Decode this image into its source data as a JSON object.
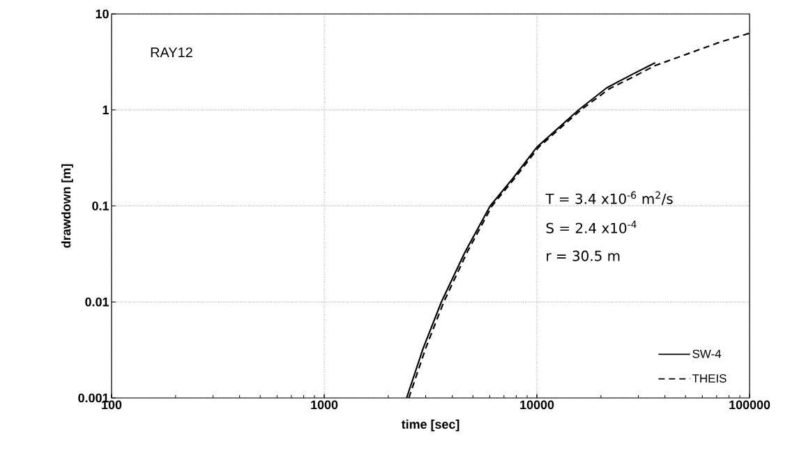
{
  "chart_data": {
    "type": "line",
    "xlabel": "time  [sec]",
    "ylabel": "drawdown  [m]",
    "log": "xy",
    "grid": true,
    "legend": "bottom right",
    "marker": "none",
    "xlim": [
      100,
      100000
    ],
    "xticks": [
      100,
      1000,
      10000,
      100000
    ],
    "ylim": [
      0.001,
      10
    ],
    "yticks": [
      0.001,
      0.01,
      0.1,
      1,
      10
    ],
    "annotations": [
      "RAY12",
      "T = 3.4 x10$^{-6}$ m$^{2}$/s",
      "S = 2.4 x10$^{-4}$",
      "r = 30.5 m"
    ],
    "series": [
      {
        "name": "SW-4",
        "color": "#000000",
        "line_style": "solid",
        "x": [
          2440,
          2920,
          3556,
          4590,
          6030,
          7800,
          10000,
          15700,
          21300,
          28100,
          36000
        ],
        "values": [
          0.001,
          0.0033,
          0.01,
          0.033,
          0.1,
          0.2,
          0.41,
          1,
          1.7,
          2.35,
          3.1
        ]
      },
      {
        "name": "THEIS",
        "color": "#000000",
        "line_style": "dashed",
        "x": [
          2500,
          3000,
          3650,
          4700,
          6150,
          7950,
          10200,
          16100,
          21800,
          28800,
          36000,
          53800,
          72800,
          100000
        ],
        "values": [
          0.001,
          0.0033,
          0.01,
          0.033,
          0.1,
          0.2,
          0.41,
          1,
          1.65,
          2.25,
          2.9,
          4.0,
          5.1,
          6.3
        ]
      }
    ]
  }
}
